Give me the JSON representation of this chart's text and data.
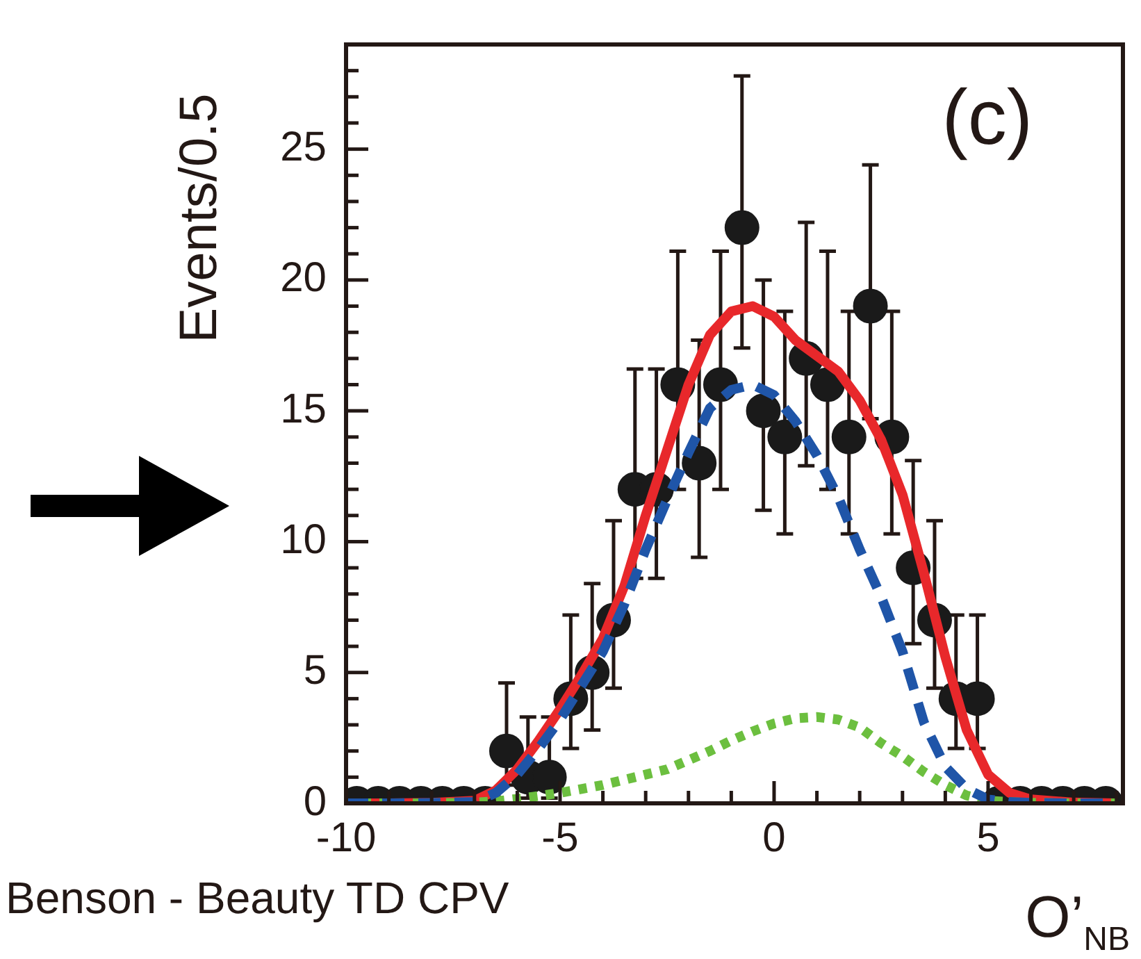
{
  "chart_data": {
    "type": "scatter",
    "title": "(c)",
    "ylabel": "Events/0.5",
    "xlabel": "O’$_{NB}$",
    "annotations": [
      "Benson - Beauty TD CPV"
    ],
    "xlim": [
      -10,
      8.15
    ],
    "ylim": [
      0,
      29
    ],
    "xticks": [
      -10,
      {
        "value": -9,
        "label": null
      },
      {
        "value": -8,
        "label": null
      },
      {
        "value": -7,
        "label": null
      },
      {
        "value": -6,
        "label": null
      },
      -5,
      {
        "value": -4,
        "label": null
      },
      {
        "value": -3,
        "label": null
      },
      {
        "value": -2,
        "label": null
      },
      {
        "value": -1,
        "label": null
      },
      0,
      {
        "value": 1,
        "label": null
      },
      {
        "value": 2,
        "label": null
      },
      {
        "value": 3,
        "label": null
      },
      {
        "value": 4,
        "label": null
      },
      5,
      {
        "value": 6,
        "label": null
      },
      {
        "value": 7,
        "label": null
      },
      {
        "value": 8,
        "label": null
      }
    ],
    "yticks": [
      0,
      {
        "value": 1,
        "label": null
      },
      {
        "value": 2,
        "label": null
      },
      {
        "value": 3,
        "label": null
      },
      {
        "value": 4,
        "label": null
      },
      5,
      {
        "value": 6,
        "label": null
      },
      {
        "value": 7,
        "label": null
      },
      {
        "value": 8,
        "label": null
      },
      {
        "value": 9,
        "label": null
      },
      10,
      {
        "value": 11,
        "label": null
      },
      {
        "value": 12,
        "label": null
      },
      {
        "value": 13,
        "label": null
      },
      {
        "value": 14,
        "label": null
      },
      15,
      {
        "value": 16,
        "label": null
      },
      {
        "value": 17,
        "label": null
      },
      {
        "value": 18,
        "label": null
      },
      {
        "value": 19,
        "label": null
      },
      20,
      {
        "value": 21,
        "label": null
      },
      {
        "value": 22,
        "label": null
      },
      {
        "value": 23,
        "label": null
      },
      {
        "value": 24,
        "label": null
      },
      25,
      {
        "value": 26,
        "label": null
      },
      {
        "value": 27,
        "label": null
      },
      {
        "value": 28,
        "label": null
      }
    ],
    "grid": false,
    "legend": false,
    "series": [
      {
        "type": "line",
        "color": "#1f55a8",
        "line_style": "dashed",
        "marker": "none",
        "x": [
          -10,
          -9,
          -8,
          -7,
          -6.5,
          -6,
          -5.5,
          -5,
          -4.5,
          -4,
          -3.5,
          -3,
          -2.5,
          -2,
          -1.5,
          -1,
          -0.5,
          0,
          0.5,
          1,
          1.5,
          2,
          2.5,
          3,
          3.5,
          4,
          4.5,
          5,
          5.5,
          6,
          7,
          8
        ],
        "values": [
          0,
          0,
          0.01,
          0.05,
          0.4,
          1.1,
          2.1,
          3.2,
          4.5,
          5.8,
          7.6,
          9.7,
          11.6,
          13.4,
          15.1,
          15.8,
          16,
          15.6,
          14.6,
          13.3,
          11.7,
          9.7,
          7.9,
          5.8,
          3.1,
          1.4,
          0.55,
          0.15,
          0.05,
          0.02,
          0,
          0
        ]
      },
      {
        "type": "line",
        "color": "#6cbf3f",
        "line_style": "dotted",
        "marker": "none",
        "x": [
          -10,
          -9,
          -8,
          -7,
          -6.5,
          -6,
          -5.5,
          -5,
          -4.5,
          -4,
          -3.5,
          -3,
          -2.5,
          -2,
          -1.5,
          -1,
          -0.5,
          0,
          0.5,
          1,
          1.5,
          2,
          2.5,
          3,
          3.5,
          4,
          4.5,
          5,
          5.5,
          6,
          7,
          8
        ],
        "values": [
          0,
          0,
          0,
          0.03,
          0.08,
          0.17,
          0.28,
          0.4,
          0.55,
          0.7,
          0.9,
          1.1,
          1.3,
          1.65,
          2,
          2.4,
          2.75,
          3.05,
          3.25,
          3.3,
          3.2,
          2.9,
          2.3,
          1.8,
          1.2,
          0.7,
          0.3,
          0.1,
          0.05,
          0.02,
          0,
          0
        ]
      },
      {
        "type": "line",
        "color": "#e8282b",
        "line_style": "solid",
        "marker": "none",
        "x": [
          -10,
          -9,
          -8,
          -7,
          -6.5,
          -6,
          -5.5,
          -5,
          -4.5,
          -4,
          -3.5,
          -3,
          -2.5,
          -2,
          -1.5,
          -1,
          -0.5,
          0,
          0.5,
          1,
          1.5,
          2,
          2.5,
          3,
          3.5,
          4,
          4.5,
          5,
          5.5,
          6,
          7,
          8
        ],
        "values": [
          0,
          0,
          0.02,
          0.1,
          0.5,
          1.3,
          2.4,
          3.6,
          4.9,
          6.3,
          8.3,
          11,
          13.5,
          16,
          17.9,
          18.8,
          19,
          18.6,
          17.7,
          17.1,
          16.5,
          15.4,
          13.9,
          11.8,
          8.8,
          5.6,
          2.8,
          1.1,
          0.4,
          0.15,
          0.03,
          0
        ]
      },
      {
        "type": "scatter",
        "color": "#1a1a1a",
        "marker": "circle",
        "x": [
          -9.75,
          -9.25,
          -8.75,
          -8.25,
          -7.75,
          -7.25,
          -6.75,
          -6.25,
          -5.75,
          -5.25,
          -4.75,
          -4.25,
          -3.75,
          -3.25,
          -2.75,
          -2.25,
          -1.75,
          -1.25,
          -0.75,
          -0.25,
          0.25,
          0.75,
          1.25,
          1.75,
          2.25,
          2.75,
          3.25,
          3.75,
          4.25,
          4.75,
          5.25,
          5.75,
          6.25,
          6.75,
          7.25,
          7.75
        ],
        "values": [
          0,
          0,
          0,
          0,
          0,
          0,
          0,
          2,
          1,
          1,
          4,
          5,
          7,
          12,
          12,
          16,
          13,
          16,
          22,
          15,
          14,
          17,
          16,
          14,
          19,
          14,
          9,
          7,
          4,
          4,
          0,
          0,
          0,
          0,
          0,
          0
        ],
        "errors": [
          null,
          null,
          null,
          null,
          null,
          null,
          null,
          [
            0.7,
            4.6
          ],
          [
            0.2,
            3.3
          ],
          [
            0.2,
            3.3
          ],
          [
            2.1,
            7.2
          ],
          [
            2.8,
            8.4
          ],
          [
            4.4,
            10.8
          ],
          [
            8.6,
            16.6
          ],
          [
            8.6,
            16.6
          ],
          [
            12,
            21.1
          ],
          [
            9.4,
            17.7
          ],
          [
            12,
            21.1
          ],
          [
            17.4,
            27.8
          ],
          [
            11.2,
            20
          ],
          [
            10.3,
            18.8
          ],
          [
            12.9,
            22.2
          ],
          [
            12,
            21.1
          ],
          [
            10.3,
            18.8
          ],
          [
            14.7,
            24.4
          ],
          [
            10.3,
            18.8
          ],
          [
            6.1,
            13.1
          ],
          [
            4.4,
            10.8
          ],
          [
            2.1,
            7.2
          ],
          [
            2.1,
            7.2
          ],
          null,
          null,
          null,
          null,
          null,
          null
        ]
      }
    ]
  }
}
